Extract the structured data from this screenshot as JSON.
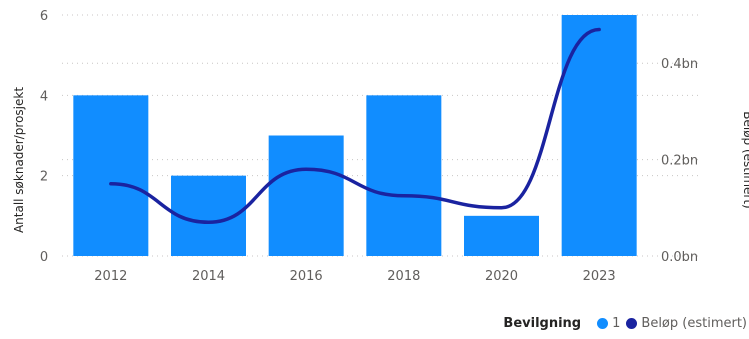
{
  "chart_data": {
    "type": "bar",
    "categories": [
      "2012",
      "2014",
      "2016",
      "2018",
      "2020",
      "2023"
    ],
    "series": [
      {
        "name": "1",
        "type": "bar",
        "axis": "left",
        "color": "#118DFF",
        "values": [
          4,
          2,
          3,
          4,
          1,
          6
        ]
      },
      {
        "name": "Beløp (estimert)",
        "type": "line",
        "axis": "right",
        "color": "#1A23A0",
        "values": [
          0.15,
          0.07,
          0.18,
          0.125,
          0.1,
          0.47
        ]
      }
    ],
    "y_left": {
      "label": "Antall søknader/prosjekt",
      "ticks": [
        "0",
        "2",
        "4",
        "6"
      ],
      "range": [
        0,
        6
      ]
    },
    "y_right": {
      "label": "Beløp (estimert)",
      "ticks": [
        "0.0bn",
        "0.2bn",
        "0.4bn"
      ],
      "range": [
        0,
        0.5
      ]
    },
    "grid": true,
    "legend": {
      "title": "Bevilgning",
      "position": "bottom-right",
      "items": [
        {
          "label": "1",
          "color": "#118DFF"
        },
        {
          "label": "Beløp (estimert)",
          "color": "#1A23A0"
        }
      ]
    }
  }
}
